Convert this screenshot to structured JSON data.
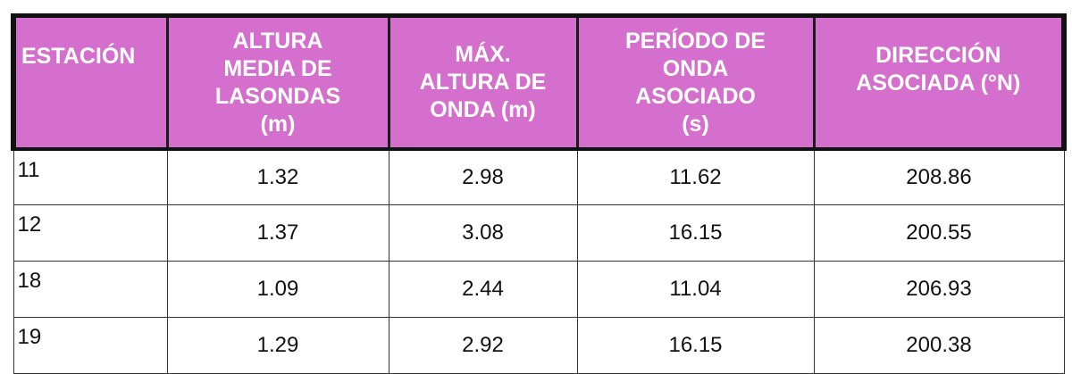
{
  "table": {
    "headers": [
      [
        "ESTACIÓN"
      ],
      [
        "ALTURA",
        "MEDIA DE",
        "LASONDAS",
        "(m)"
      ],
      [
        "MÁX.",
        "ALTURA DE",
        "ONDA (m)"
      ],
      [
        "PERÍODO DE",
        "ONDA",
        "ASOCIADO",
        "(s)"
      ],
      [
        "DIRECCIÓN",
        "ASOCIADA (°N)"
      ]
    ],
    "rows": [
      [
        "11",
        "1.32",
        "2.98",
        "11.62",
        "208.86"
      ],
      [
        "12",
        "1.37",
        "3.08",
        "16.15",
        "200.55"
      ],
      [
        "18",
        "1.09",
        "2.44",
        "11.04",
        "206.93"
      ],
      [
        "19",
        "1.29",
        "2.92",
        "16.15",
        "200.38"
      ]
    ]
  },
  "colors": {
    "header_background": "#d56fcd",
    "header_text": "#ffffff",
    "cell_text": "#111111",
    "border": "#111111"
  }
}
